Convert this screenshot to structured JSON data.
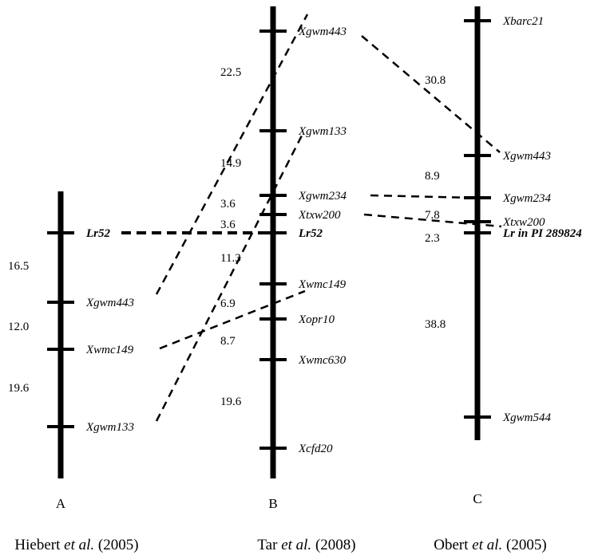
{
  "maps": [
    {
      "id": "A",
      "letter": "A",
      "citation": {
        "pre": "Hiebert ",
        "em": "et al.",
        "post": " (2005)"
      },
      "markers": [
        {
          "name": "Lr52",
          "bold": true
        },
        {
          "name": "Xgwm443",
          "bold": false
        },
        {
          "name": "Xwmc149",
          "bold": false
        },
        {
          "name": "Xgwm133",
          "bold": false
        }
      ],
      "distances": [
        "16.5",
        "12.0",
        "19.6"
      ]
    },
    {
      "id": "B",
      "letter": "B",
      "citation": {
        "pre": "Tar ",
        "em": "et al.",
        "post": " (2008)"
      },
      "markers": [
        {
          "name": "Xgwm443",
          "bold": false
        },
        {
          "name": "Xgwm133",
          "bold": false
        },
        {
          "name": "Xgwm234",
          "bold": false
        },
        {
          "name": "Xtxw200",
          "bold": false
        },
        {
          "name": "Lr52",
          "bold": true
        },
        {
          "name": "Xwmc149",
          "bold": false
        },
        {
          "name": "Xopr10",
          "bold": false
        },
        {
          "name": "Xwmc630",
          "bold": false
        },
        {
          "name": "Xcfd20",
          "bold": false
        }
      ],
      "distances": [
        "22.5",
        "14.9",
        "3.6",
        "3.6",
        "11.3",
        "6.9",
        "8.7",
        "19.6"
      ]
    },
    {
      "id": "C",
      "letter": "C",
      "citation": {
        "pre": "Obert ",
        "em": "et al.",
        "post": " (2005)"
      },
      "markers": [
        {
          "name": "Xbarc21",
          "bold": false
        },
        {
          "name": "Xgwm443",
          "bold": false
        },
        {
          "name": "Xgwm234",
          "bold": false
        },
        {
          "name": "Lr in PI 289824",
          "bold": true
        },
        {
          "name": "Xtxw200",
          "bold": false
        },
        {
          "name": "Xgwm544",
          "bold": false
        }
      ],
      "distances": [
        "30.8",
        "8.9",
        "7.8",
        "2.3",
        "38.8"
      ]
    }
  ],
  "links": [
    {
      "from": "A.Lr52",
      "to": "B.Lr52"
    },
    {
      "from": "A.Xgwm443",
      "to": "B.Xgwm443"
    },
    {
      "from": "A.Xwmc149",
      "to": "B.Xwmc149"
    },
    {
      "from": "A.Xgwm133",
      "to": "B.Xgwm133"
    },
    {
      "from": "B.Xgwm443",
      "to": "C.Xgwm443"
    },
    {
      "from": "B.Xgwm234",
      "to": "C.Xgwm234"
    },
    {
      "from": "B.Xtxw200",
      "to": "C.Xtxw200"
    }
  ]
}
